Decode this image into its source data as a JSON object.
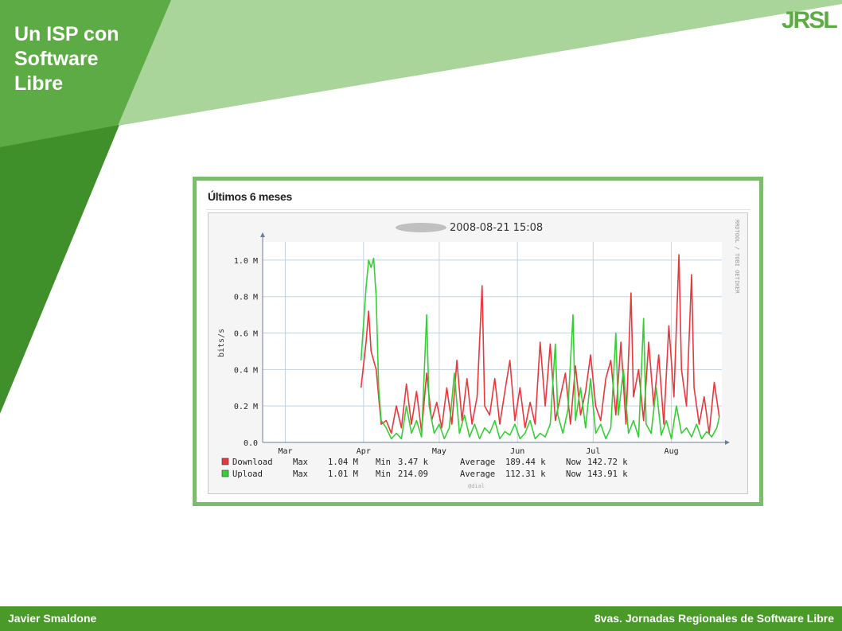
{
  "slide": {
    "title_lines": [
      "Un ISP con",
      "Software",
      "Libre"
    ],
    "logo_text": "JRSL",
    "footer_left": "Javier Smaldone",
    "footer_right": "8vas. Jornadas Regionales de Software Libre"
  },
  "colors": {
    "dark_green": "#3f8f2a",
    "mid_green": "#5dab45",
    "light_green": "#a9d59a",
    "footer_green": "#4a9a2a",
    "frame_green": "#7dbb6f",
    "download": "#e8383a",
    "upload": "#35cf35"
  },
  "chart_heading": "Últimos 6 meses",
  "chart_data": {
    "type": "line",
    "title": "2008-08-21 15:08",
    "ylabel": "bits/s",
    "watermark": "RRDTOOL / TOBI OETIKER",
    "footnote": "@dial",
    "y_ticks": [
      "0.0",
      "0.2 M",
      "0.4 M",
      "0.6 M",
      "0.8 M",
      "1.0 M"
    ],
    "ylim": [
      0,
      1.1
    ],
    "y_unit": "Mbit/s",
    "x_ticks": [
      "Mar",
      "Apr",
      "May",
      "Jun",
      "Jul",
      "Aug"
    ],
    "x_tick_dates": [
      "2008-03-01",
      "2008-04-01",
      "2008-05-01",
      "2008-06-01",
      "2008-07-01",
      "2008-08-01"
    ],
    "xlim": [
      "2008-02-21",
      "2008-08-21"
    ],
    "grid": true,
    "legend_position": "bottom",
    "series": [
      {
        "name": "Download",
        "color": "#e8383a",
        "stats": {
          "max_label": "Max",
          "max": "1.04 M",
          "min_label": "Min",
          "min": "3.47 k",
          "avg_label": "Average",
          "avg": "189.44 k",
          "now_label": "Now",
          "now": "142.72 k"
        },
        "points": [
          [
            "2008-03-31",
            0.3
          ],
          [
            "2008-04-02",
            0.55
          ],
          [
            "2008-04-03",
            0.72
          ],
          [
            "2008-04-04",
            0.5
          ],
          [
            "2008-04-06",
            0.4
          ],
          [
            "2008-04-07",
            0.25
          ],
          [
            "2008-04-08",
            0.1
          ],
          [
            "2008-04-10",
            0.12
          ],
          [
            "2008-04-12",
            0.05
          ],
          [
            "2008-04-14",
            0.2
          ],
          [
            "2008-04-16",
            0.08
          ],
          [
            "2008-04-18",
            0.32
          ],
          [
            "2008-04-20",
            0.1
          ],
          [
            "2008-04-22",
            0.28
          ],
          [
            "2008-04-24",
            0.06
          ],
          [
            "2008-04-26",
            0.38
          ],
          [
            "2008-04-28",
            0.12
          ],
          [
            "2008-04-30",
            0.22
          ],
          [
            "2008-05-02",
            0.08
          ],
          [
            "2008-05-04",
            0.3
          ],
          [
            "2008-05-06",
            0.1
          ],
          [
            "2008-05-08",
            0.45
          ],
          [
            "2008-05-10",
            0.12
          ],
          [
            "2008-05-12",
            0.35
          ],
          [
            "2008-05-14",
            0.1
          ],
          [
            "2008-05-16",
            0.25
          ],
          [
            "2008-05-18",
            0.86
          ],
          [
            "2008-05-19",
            0.2
          ],
          [
            "2008-05-21",
            0.15
          ],
          [
            "2008-05-23",
            0.35
          ],
          [
            "2008-05-25",
            0.1
          ],
          [
            "2008-05-27",
            0.28
          ],
          [
            "2008-05-29",
            0.45
          ],
          [
            "2008-05-31",
            0.12
          ],
          [
            "2008-06-02",
            0.3
          ],
          [
            "2008-06-04",
            0.08
          ],
          [
            "2008-06-06",
            0.22
          ],
          [
            "2008-06-08",
            0.1
          ],
          [
            "2008-06-10",
            0.55
          ],
          [
            "2008-06-12",
            0.2
          ],
          [
            "2008-06-14",
            0.54
          ],
          [
            "2008-06-16",
            0.12
          ],
          [
            "2008-06-18",
            0.25
          ],
          [
            "2008-06-20",
            0.38
          ],
          [
            "2008-06-22",
            0.1
          ],
          [
            "2008-06-24",
            0.42
          ],
          [
            "2008-06-26",
            0.15
          ],
          [
            "2008-06-28",
            0.28
          ],
          [
            "2008-06-30",
            0.48
          ],
          [
            "2008-07-02",
            0.2
          ],
          [
            "2008-07-04",
            0.12
          ],
          [
            "2008-07-06",
            0.35
          ],
          [
            "2008-07-08",
            0.45
          ],
          [
            "2008-07-10",
            0.15
          ],
          [
            "2008-07-12",
            0.55
          ],
          [
            "2008-07-14",
            0.1
          ],
          [
            "2008-07-16",
            0.82
          ],
          [
            "2008-07-17",
            0.25
          ],
          [
            "2008-07-19",
            0.4
          ],
          [
            "2008-07-21",
            0.12
          ],
          [
            "2008-07-23",
            0.55
          ],
          [
            "2008-07-25",
            0.2
          ],
          [
            "2008-07-27",
            0.48
          ],
          [
            "2008-07-29",
            0.1
          ],
          [
            "2008-07-31",
            0.64
          ],
          [
            "2008-08-02",
            0.25
          ],
          [
            "2008-08-04",
            1.03
          ],
          [
            "2008-08-05",
            0.4
          ],
          [
            "2008-08-07",
            0.2
          ],
          [
            "2008-08-09",
            0.92
          ],
          [
            "2008-08-10",
            0.3
          ],
          [
            "2008-08-12",
            0.1
          ],
          [
            "2008-08-14",
            0.25
          ],
          [
            "2008-08-16",
            0.05
          ],
          [
            "2008-08-18",
            0.33
          ],
          [
            "2008-08-20",
            0.14
          ]
        ]
      },
      {
        "name": "Upload",
        "color": "#35cf35",
        "stats": {
          "max_label": "Max",
          "max": "1.01 M",
          "min_label": "Min",
          "min": "214.09",
          "avg_label": "Average",
          "avg": "112.31 k",
          "now_label": "Now",
          "now": "143.91 k"
        },
        "points": [
          [
            "2008-03-31",
            0.45
          ],
          [
            "2008-04-02",
            0.85
          ],
          [
            "2008-04-03",
            1.0
          ],
          [
            "2008-04-04",
            0.96
          ],
          [
            "2008-04-05",
            1.01
          ],
          [
            "2008-04-06",
            0.8
          ],
          [
            "2008-04-07",
            0.3
          ],
          [
            "2008-04-08",
            0.12
          ],
          [
            "2008-04-10",
            0.08
          ],
          [
            "2008-04-12",
            0.02
          ],
          [
            "2008-04-14",
            0.05
          ],
          [
            "2008-04-16",
            0.02
          ],
          [
            "2008-04-18",
            0.2
          ],
          [
            "2008-04-20",
            0.05
          ],
          [
            "2008-04-22",
            0.12
          ],
          [
            "2008-04-24",
            0.03
          ],
          [
            "2008-04-26",
            0.7
          ],
          [
            "2008-04-27",
            0.2
          ],
          [
            "2008-04-29",
            0.05
          ],
          [
            "2008-05-01",
            0.1
          ],
          [
            "2008-05-03",
            0.02
          ],
          [
            "2008-05-05",
            0.08
          ],
          [
            "2008-05-07",
            0.38
          ],
          [
            "2008-05-09",
            0.05
          ],
          [
            "2008-05-11",
            0.15
          ],
          [
            "2008-05-13",
            0.03
          ],
          [
            "2008-05-15",
            0.1
          ],
          [
            "2008-05-17",
            0.02
          ],
          [
            "2008-05-19",
            0.08
          ],
          [
            "2008-05-21",
            0.05
          ],
          [
            "2008-05-23",
            0.12
          ],
          [
            "2008-05-25",
            0.02
          ],
          [
            "2008-05-27",
            0.06
          ],
          [
            "2008-05-29",
            0.04
          ],
          [
            "2008-05-31",
            0.1
          ],
          [
            "2008-06-02",
            0.02
          ],
          [
            "2008-06-04",
            0.05
          ],
          [
            "2008-06-06",
            0.12
          ],
          [
            "2008-06-08",
            0.02
          ],
          [
            "2008-06-10",
            0.05
          ],
          [
            "2008-06-12",
            0.03
          ],
          [
            "2008-06-14",
            0.1
          ],
          [
            "2008-06-16",
            0.54
          ],
          [
            "2008-06-17",
            0.15
          ],
          [
            "2008-06-19",
            0.05
          ],
          [
            "2008-06-21",
            0.18
          ],
          [
            "2008-06-23",
            0.7
          ],
          [
            "2008-06-24",
            0.12
          ],
          [
            "2008-06-26",
            0.3
          ],
          [
            "2008-06-28",
            0.08
          ],
          [
            "2008-06-30",
            0.35
          ],
          [
            "2008-07-02",
            0.05
          ],
          [
            "2008-07-04",
            0.1
          ],
          [
            "2008-07-06",
            0.02
          ],
          [
            "2008-07-08",
            0.08
          ],
          [
            "2008-07-10",
            0.6
          ],
          [
            "2008-07-11",
            0.15
          ],
          [
            "2008-07-13",
            0.4
          ],
          [
            "2008-07-15",
            0.05
          ],
          [
            "2008-07-17",
            0.12
          ],
          [
            "2008-07-19",
            0.03
          ],
          [
            "2008-07-21",
            0.68
          ],
          [
            "2008-07-22",
            0.1
          ],
          [
            "2008-07-24",
            0.05
          ],
          [
            "2008-07-26",
            0.3
          ],
          [
            "2008-07-28",
            0.04
          ],
          [
            "2008-07-30",
            0.12
          ],
          [
            "2008-08-01",
            0.02
          ],
          [
            "2008-08-03",
            0.2
          ],
          [
            "2008-08-05",
            0.05
          ],
          [
            "2008-08-07",
            0.08
          ],
          [
            "2008-08-09",
            0.03
          ],
          [
            "2008-08-11",
            0.1
          ],
          [
            "2008-08-13",
            0.02
          ],
          [
            "2008-08-15",
            0.06
          ],
          [
            "2008-08-17",
            0.03
          ],
          [
            "2008-08-19",
            0.08
          ],
          [
            "2008-08-20",
            0.14
          ]
        ]
      }
    ]
  }
}
